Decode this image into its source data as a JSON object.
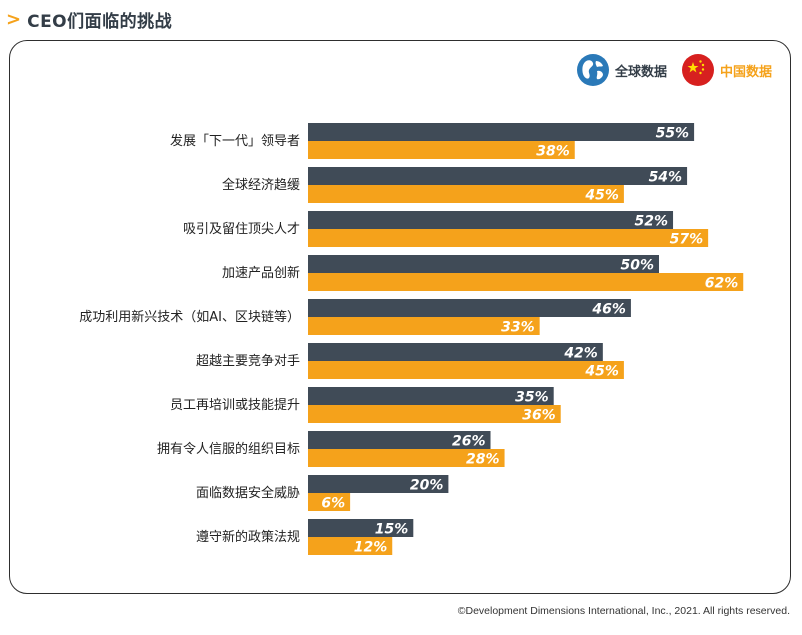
{
  "header": {
    "title": "CEO们面临的挑战"
  },
  "legend": [
    {
      "label": "全球数据",
      "color": "#333d47",
      "label_color": "#333d47",
      "icon": "globe-icon"
    },
    {
      "label": "中国数据",
      "color": "#f5a21b",
      "label_color": "#f5a21b",
      "icon": "china-flag-icon"
    }
  ],
  "chart_data": {
    "type": "bar",
    "orientation": "horizontal",
    "categories": [
      "发展「下一代」领导者",
      "全球经济趋缓",
      "吸引及留住顶尖人才",
      "加速产品创新",
      "成功利用新兴技术（如AI、区块链等）",
      "超越主要竞争对手",
      "员工再培训或技能提升",
      "拥有令人信服的组织目标",
      "面临数据安全威胁",
      "遵守新的政策法规"
    ],
    "series": [
      {
        "name": "全球数据",
        "color": "#404b57",
        "values": [
          55,
          54,
          52,
          50,
          46,
          42,
          35,
          26,
          20,
          15
        ]
      },
      {
        "name": "中国数据",
        "color": "#f5a21b",
        "values": [
          38,
          45,
          57,
          62,
          33,
          45,
          36,
          28,
          6,
          12
        ]
      }
    ],
    "value_suffix": "%",
    "xlim": [
      0,
      100
    ],
    "grid": false,
    "legend_position": "top-right"
  },
  "footer": {
    "copyright": "©Development Dimensions International, Inc., 2021. All rights reserved."
  }
}
